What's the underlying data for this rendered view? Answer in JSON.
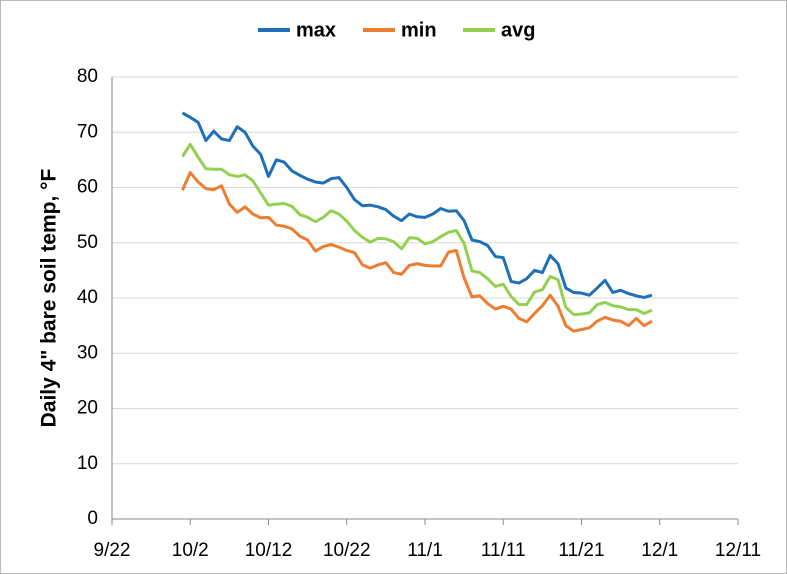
{
  "chart_data": {
    "type": "line",
    "y_label": "Daily 4\" bare soil temp, °F",
    "x": [
      274,
      275,
      276,
      277,
      278,
      279,
      280,
      281,
      282,
      283,
      284,
      285,
      286,
      287,
      288,
      289,
      290,
      291,
      292,
      293,
      294,
      295,
      296,
      297,
      298,
      299,
      300,
      301,
      302,
      303,
      304,
      305,
      306,
      307,
      308,
      309,
      310,
      311,
      312,
      313,
      314,
      315,
      316,
      317,
      318,
      319,
      320,
      321,
      322,
      323,
      324,
      325,
      326,
      327,
      328,
      329,
      330,
      331,
      332,
      333,
      334
    ],
    "series": [
      {
        "name": "max",
        "color": "#1f6fb8",
        "values": [
          73.5,
          72.7,
          71.8,
          68.5,
          70.2,
          68.8,
          68.5,
          71,
          70,
          67.5,
          66,
          62,
          65,
          64.6,
          63,
          62.2,
          61.5,
          61,
          60.8,
          61.6,
          61.8,
          60,
          57.8,
          56.7,
          56.8,
          56.5,
          56,
          54.8,
          54,
          55.2,
          54.7,
          54.6,
          55.2,
          56.2,
          55.7,
          55.8,
          54,
          50.5,
          50.2,
          49.5,
          47.5,
          47.3,
          43,
          42.7,
          43.5,
          45,
          44.6,
          47.7,
          46.2,
          41.8,
          41,
          40.9,
          40.5,
          41.8,
          43.2,
          41,
          41.4,
          40.8,
          40.4,
          40.1,
          40.5
        ]
      },
      {
        "name": "min",
        "color": "#ed7d31",
        "values": [
          59.5,
          62.7,
          61,
          59.8,
          59.6,
          60.3,
          57,
          55.5,
          56.5,
          55.2,
          54.5,
          54.6,
          53.2,
          53,
          52.5,
          51.2,
          50.5,
          48.5,
          49.3,
          49.7,
          49.2,
          48.6,
          48.2,
          46,
          45.4,
          46,
          46.4,
          44.6,
          44.3,
          45.9,
          46.2,
          45.9,
          45.8,
          45.8,
          48.3,
          48.6,
          43.6,
          40.2,
          40.4,
          39,
          38,
          38.5,
          38,
          36.3,
          35.7,
          37.2,
          38.6,
          40.5,
          38.5,
          35,
          34,
          34.3,
          34.6,
          35.8,
          36.5,
          36,
          35.8,
          35,
          36.3,
          35,
          35.8
        ]
      },
      {
        "name": "avg",
        "color": "#92d050",
        "values": [
          65.6,
          67.8,
          65.5,
          63.4,
          63.3,
          63.3,
          62.3,
          62,
          62.3,
          61.2,
          59,
          56.8,
          57,
          57.1,
          56.6,
          55.1,
          54.6,
          53.8,
          54.6,
          55.8,
          55.2,
          53.9,
          52.2,
          51,
          50.1,
          50.8,
          50.7,
          50.2,
          48.9,
          50.9,
          50.8,
          49.8,
          50.2,
          51.1,
          51.9,
          52.2,
          49.9,
          44.9,
          44.6,
          43.5,
          42.1,
          42.5,
          40.3,
          38.8,
          38.8,
          41.1,
          41.5,
          43.9,
          43.3,
          38.3,
          37,
          37.1,
          37.3,
          38.8,
          39.2,
          38.6,
          38.4,
          37.9,
          37.9,
          37.2,
          37.8
        ]
      }
    ],
    "xlim": [
      265,
      345
    ],
    "xticks": [
      {
        "value": 265,
        "label": "9/22"
      },
      {
        "value": 275,
        "label": "10/2"
      },
      {
        "value": 285,
        "label": "10/12"
      },
      {
        "value": 295,
        "label": "10/22"
      },
      {
        "value": 305,
        "label": "11/1"
      },
      {
        "value": 315,
        "label": "11/11"
      },
      {
        "value": 325,
        "label": "11/21"
      },
      {
        "value": 335,
        "label": "12/1"
      },
      {
        "value": 345,
        "label": "12/11"
      }
    ],
    "ylim": [
      0,
      80
    ],
    "yticks": [
      0,
      10,
      20,
      30,
      40,
      50,
      60,
      70,
      80
    ],
    "grid": true,
    "legend": "top"
  }
}
